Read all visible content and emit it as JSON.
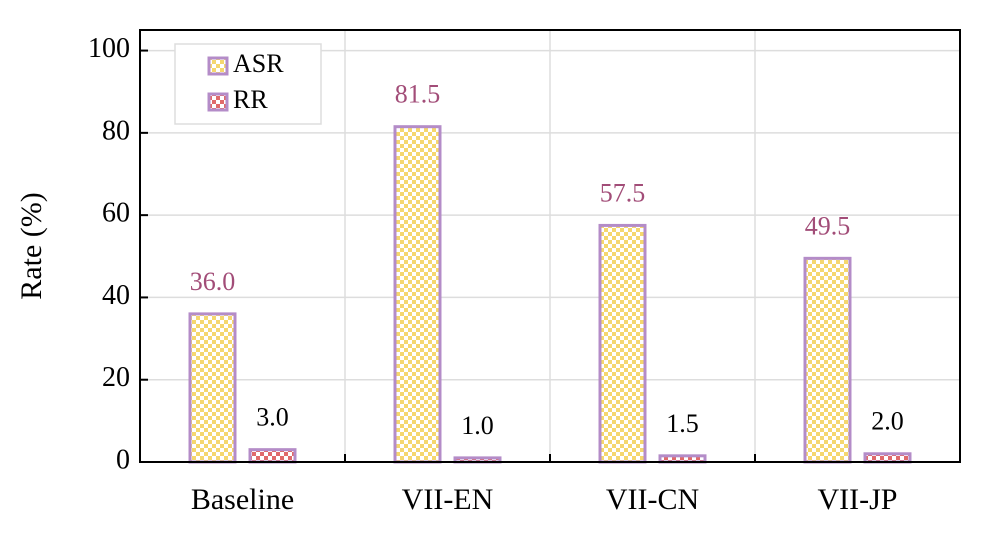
{
  "chart_data": {
    "type": "bar",
    "categories": [
      "Baseline",
      "VII-EN",
      "VII-CN",
      "VII-JP"
    ],
    "y_label": "Rate (%)",
    "series": [
      {
        "name": "ASR",
        "color": "#f5d76e",
        "border": "#b48cc8",
        "label_color": "#a24d78",
        "values": [
          36,
          81.5,
          57.5,
          49.5
        ],
        "value_labels": [
          "36.0",
          "81.5",
          "57.5",
          "49.5"
        ]
      },
      {
        "name": "RR",
        "color": "#e06a6a",
        "border": "#b48cc8",
        "label_color": "#000000",
        "values": [
          3,
          1,
          1.5,
          2
        ],
        "value_labels": [
          "3.0",
          "1.0",
          "1.5",
          "2.0"
        ]
      }
    ],
    "ylim": [
      0,
      105
    ],
    "yticks": [
      0,
      20,
      40,
      60,
      80,
      100
    ],
    "grid": true,
    "legend": "upper left"
  }
}
